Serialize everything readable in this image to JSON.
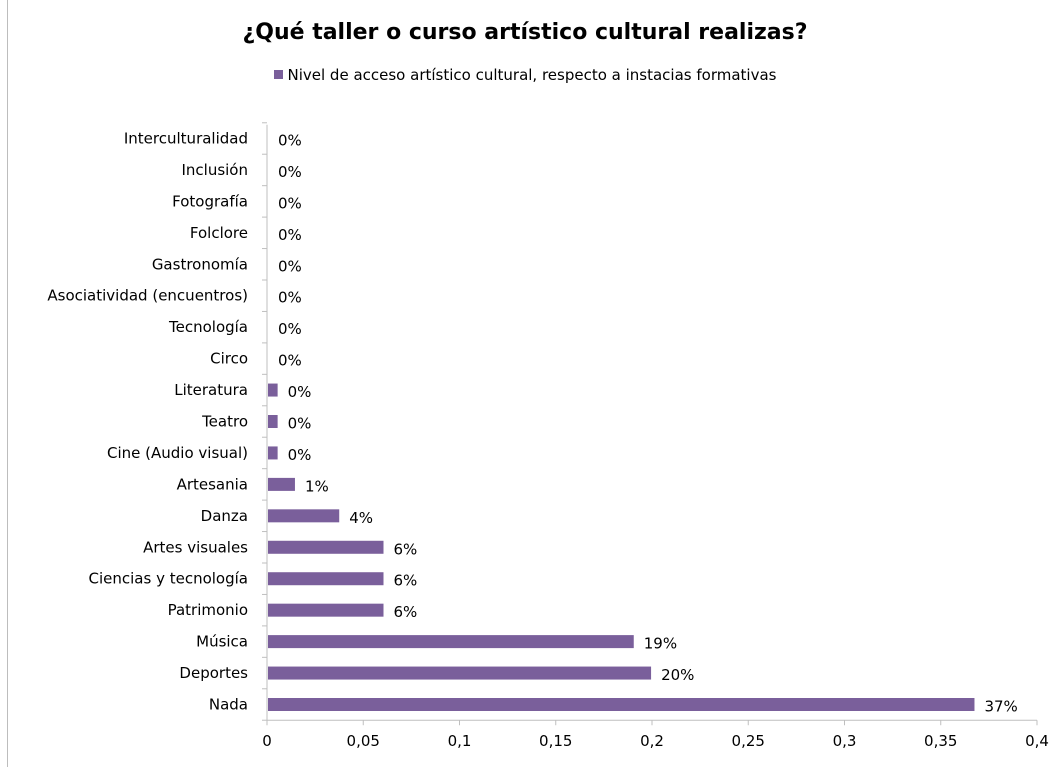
{
  "chart_data": {
    "type": "bar",
    "orientation": "horizontal",
    "title": "¿Qué taller o curso artístico cultural realizas?",
    "legend_position": "top",
    "series": [
      {
        "name": "Nivel de acceso artístico cultural, respecto a instacias formativas",
        "color": "#7a5f9b",
        "values": [
          0.367,
          0.199,
          0.19,
          0.06,
          0.06,
          0.06,
          0.037,
          0.014,
          0.005,
          0.005,
          0.005,
          0,
          0,
          0,
          0,
          0,
          0,
          0,
          0
        ],
        "data_labels": [
          "37%",
          "20%",
          "19%",
          "6%",
          "6%",
          "6%",
          "4%",
          "1%",
          "0%",
          "0%",
          "0%",
          "0%",
          "0%",
          "0%",
          "0%",
          "0%",
          "0%",
          "0%",
          "0%"
        ]
      }
    ],
    "categories": [
      "Nada",
      "Deportes",
      "Música",
      "Patrimonio",
      "Ciencias y tecnología",
      "Artes visuales",
      "Danza",
      "Artesania",
      "Cine (Audio visual)",
      "Teatro",
      "Literatura",
      "Circo",
      "Tecnología",
      "Asociatividad (encuentros)",
      "Gastronomía",
      "Folclore",
      "Fotografía",
      "Inclusión",
      "Interculturalidad"
    ],
    "xlim": [
      0,
      0.4
    ],
    "x_ticks": [
      0,
      0.05,
      0.1,
      0.15,
      0.2,
      0.25,
      0.3,
      0.35,
      0.4
    ],
    "x_tick_labels": [
      "0",
      "0,05",
      "0,1",
      "0,15",
      "0,2",
      "0,25",
      "0,3",
      "0,35",
      "0,4"
    ],
    "grid": false
  }
}
